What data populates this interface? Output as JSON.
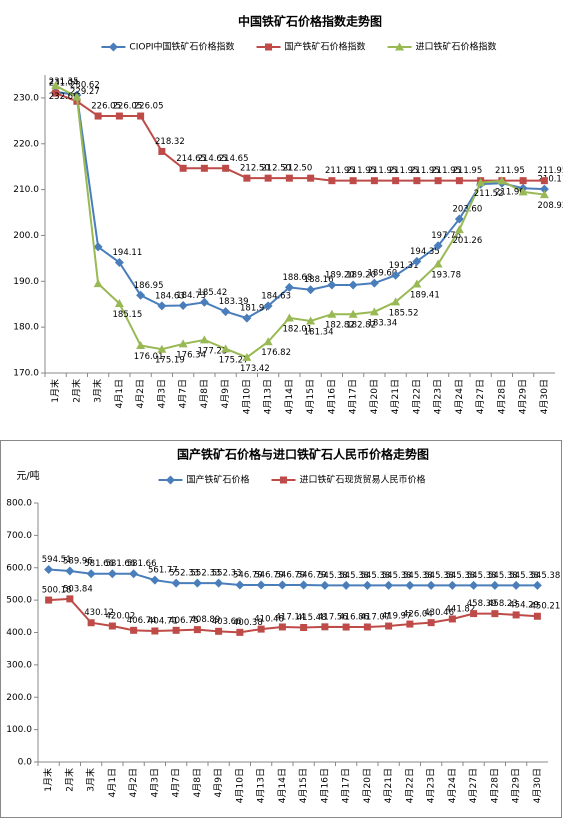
{
  "chart_data": [
    {
      "type": "line",
      "title": "中国铁矿石价格指数走势图",
      "categories": [
        "1月末",
        "2月末",
        "3月末",
        "4月1日",
        "4月2日",
        "4月3日",
        "4月7日",
        "4月8日",
        "4月9日",
        "4月10日",
        "4月13日",
        "4月14日",
        "4月15日",
        "4月16日",
        "4月17日",
        "4月20日",
        "4月21日",
        "4月22日",
        "4月23日",
        "4月24日",
        "4月27日",
        "4月28日",
        "4月29日",
        "4月30日"
      ],
      "series": [
        {
          "name": "CIOPI中国铁矿石价格指数",
          "color": "#4a7ebb",
          "marker": "diamond",
          "values": [
            231.35,
            230.62,
            197.5,
            194.11,
            186.95,
            184.63,
            184.73,
            185.42,
            183.39,
            181.97,
            184.63,
            188.68,
            188.16,
            189.2,
            189.2,
            189.6,
            191.31,
            194.35,
            197.76,
            203.6,
            211.2,
            211.4,
            210.3,
            210.11
          ],
          "value_labels": [
            "231.35",
            "230.62",
            null,
            "194.11",
            "186.95",
            "184.63",
            "184.73",
            "185.42",
            "183.39",
            "181.97",
            "184.63",
            "188.68",
            "188.16",
            "189.20",
            "189.20",
            "189.60",
            "191.31",
            "194.35",
            "197.76",
            "203.60",
            null,
            null,
            null,
            "210.11"
          ]
        },
        {
          "name": "国产铁矿石价格指数",
          "color": "#be4b48",
          "marker": "square",
          "values": [
            231.04,
            229.27,
            226.05,
            226.05,
            226.05,
            218.32,
            214.65,
            214.65,
            214.65,
            212.5,
            212.5,
            212.5,
            212.5,
            211.95,
            211.95,
            211.95,
            211.95,
            211.95,
            211.95,
            211.95,
            211.95,
            211.95,
            211.95,
            211.95
          ],
          "value_labels": [
            "231.04",
            "229.27",
            "226.05",
            "226.05",
            "226.05",
            "218.32",
            "214.65",
            "214.65",
            "214.65",
            "212.50",
            "212.50",
            "212.50",
            null,
            "211.95",
            "211.95",
            "211.95",
            "211.95",
            "211.95",
            "211.95",
            "211.95",
            null,
            "211.95",
            null,
            "211.95"
          ]
        },
        {
          "name": "进口铁矿石价格指数",
          "color": "#98b954",
          "marker": "triangle",
          "values": [
            232.69,
            230.2,
            189.5,
            185.15,
            176.01,
            175.19,
            176.34,
            177.23,
            175.27,
            173.42,
            176.82,
            182.01,
            181.34,
            182.82,
            182.82,
            183.34,
            185.52,
            189.41,
            193.78,
            201.26,
            211.52,
            211.9,
            209.5,
            208.92
          ],
          "value_labels": [
            "232.69",
            null,
            null,
            "185.15",
            "176.01",
            "175.19",
            "176.34",
            "177.23",
            "175.27",
            "173.42",
            "176.82",
            "182.01",
            "181.34",
            "182.82",
            "182.82",
            "183.34",
            "185.52",
            "189.41",
            "193.78",
            "201.26",
            "211.52",
            "211.90",
            null,
            "208.92"
          ]
        }
      ],
      "ylim": [
        170,
        235
      ],
      "yticks": [
        {
          "value": 170,
          "label": "170.0"
        },
        {
          "value": 180,
          "label": "180.0"
        },
        {
          "value": 190,
          "label": "190.0"
        },
        {
          "value": 200,
          "label": "200.0"
        },
        {
          "value": 210,
          "label": "210.0"
        },
        {
          "value": 220,
          "label": "220.0"
        },
        {
          "value": 230,
          "label": "230.0"
        }
      ],
      "grid": false
    },
    {
      "type": "line",
      "title": "国产铁矿石价格与进口铁矿石人民币价格走势图",
      "y_label": "元/吨",
      "categories": [
        "1月末",
        "2月末",
        "3月末",
        "4月1日",
        "4月2日",
        "4月3日",
        "4月7日",
        "4月8日",
        "4月9日",
        "4月10日",
        "4月13日",
        "4月14日",
        "4月15日",
        "4月16日",
        "4月17日",
        "4月20日",
        "4月21日",
        "4月22日",
        "4月23日",
        "4月24日",
        "4月27日",
        "4月28日",
        "4月29日",
        "4月30日"
      ],
      "series": [
        {
          "name": "国产铁矿石价格",
          "color": "#4a7ebb",
          "marker": "diamond",
          "values": [
            594.51,
            589.96,
            581.66,
            581.66,
            581.66,
            561.77,
            552.33,
            552.33,
            552.33,
            546.79,
            546.79,
            546.79,
            546.79,
            545.38,
            545.38,
            545.38,
            545.38,
            545.38,
            545.38,
            545.38,
            545.38,
            545.38,
            545.38,
            545.38
          ]
        },
        {
          "name": "进口铁矿石现货贸易人民币价格",
          "color": "#be4b48",
          "marker": "square",
          "values": [
            500.18,
            503.84,
            430.12,
            420.02,
            406.74,
            404.71,
            406.75,
            408.89,
            403.66,
            400.38,
            410.48,
            417.14,
            415.48,
            417.56,
            416.86,
            417.07,
            419.97,
            426.04,
            430.46,
            441.82,
            458.39,
            458.23,
            454.29,
            450.21
          ]
        }
      ],
      "ylim": [
        0,
        800
      ],
      "yticks": [
        {
          "value": 0,
          "label": "0.0"
        },
        {
          "value": 100,
          "label": "100.0"
        },
        {
          "value": 200,
          "label": "200.0"
        },
        {
          "value": 300,
          "label": "300.0"
        },
        {
          "value": 400,
          "label": "400.0"
        },
        {
          "value": 500,
          "label": "500.0"
        },
        {
          "value": 600,
          "label": "600.0"
        },
        {
          "value": 700,
          "label": "700.0"
        },
        {
          "value": 800,
          "label": "800.0"
        }
      ],
      "grid": false
    }
  ]
}
